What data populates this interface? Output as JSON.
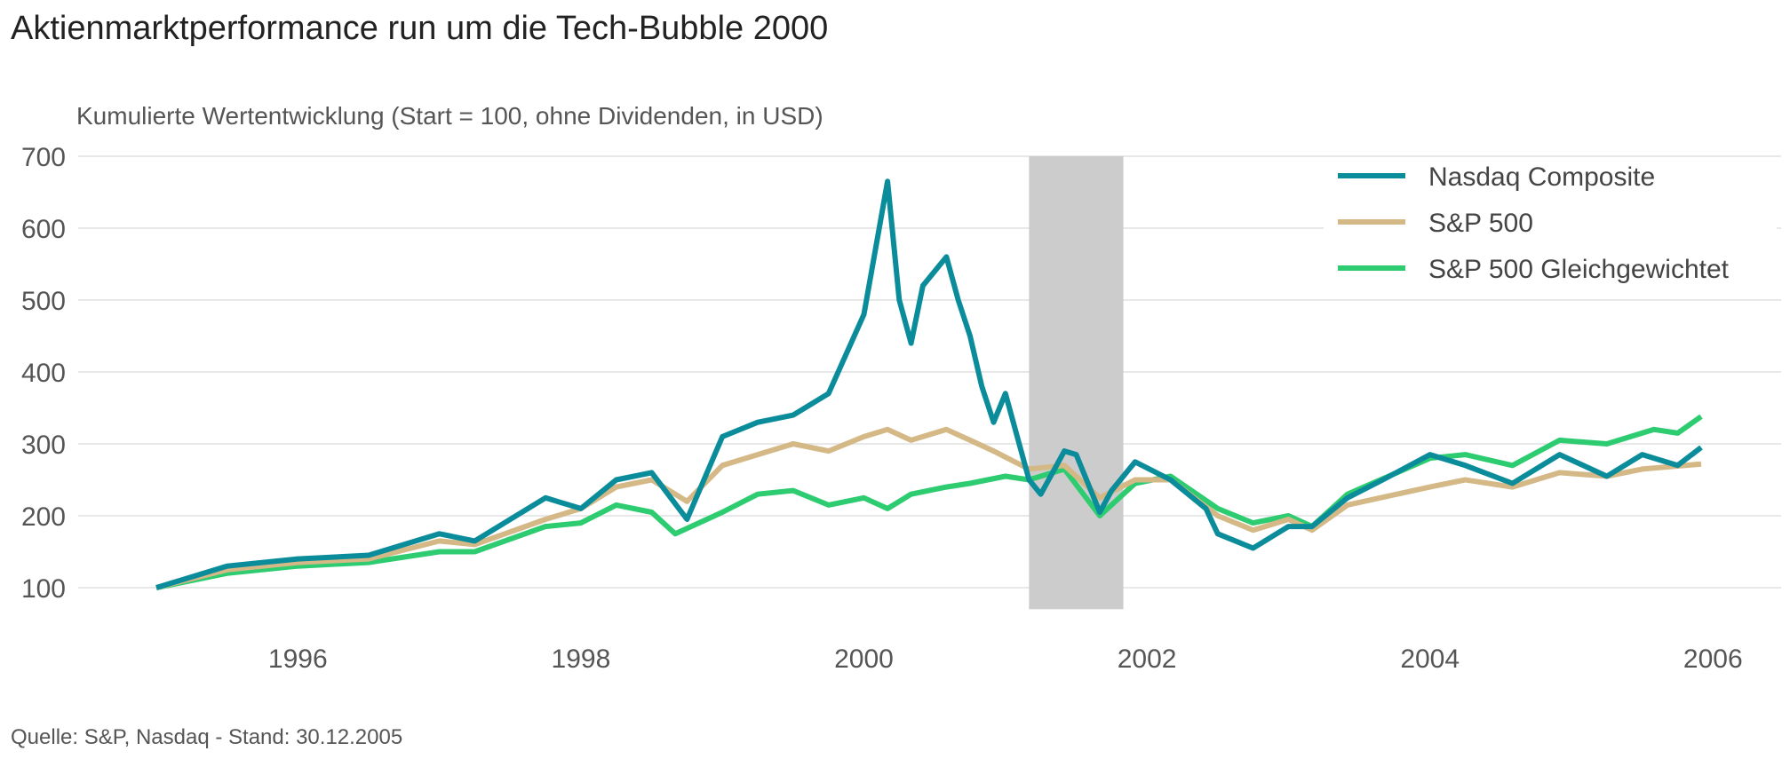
{
  "chart_data": {
    "type": "line",
    "title": "Aktienmarktperformance run um die Tech-Bubble 2000",
    "subtitle": "Kumulierte Wertentwicklung (Start = 100, ohne Dividenden, in USD)",
    "caption": "Quelle: S&P, Nasdaq - Stand: 30.12.2005",
    "xlabel": "",
    "ylabel": "",
    "xlim": [
      "1995-01",
      "2006-04"
    ],
    "ylim": [
      70,
      700
    ],
    "grid": true,
    "legend_position": "top-right",
    "x_ticks": [
      "1996",
      "1998",
      "2000",
      "2002",
      "2004",
      "2006"
    ],
    "y_ticks": [
      100,
      200,
      300,
      400,
      500,
      600,
      700
    ],
    "shaded_region": {
      "start": "2001-03",
      "end": "2001-11",
      "color": "#cccccc"
    },
    "series": [
      {
        "name": "Nasdaq Composite",
        "color": "#0b8c9a",
        "points": [
          [
            "1995-01",
            100
          ],
          [
            "1995-07",
            130
          ],
          [
            "1996-01",
            140
          ],
          [
            "1996-07",
            145
          ],
          [
            "1997-01",
            175
          ],
          [
            "1997-04",
            165
          ],
          [
            "1997-10",
            225
          ],
          [
            "1998-01",
            210
          ],
          [
            "1998-04",
            250
          ],
          [
            "1998-07",
            260
          ],
          [
            "1998-10",
            195
          ],
          [
            "1999-01",
            310
          ],
          [
            "1999-04",
            330
          ],
          [
            "1999-07",
            340
          ],
          [
            "1999-10",
            370
          ],
          [
            "2000-01",
            480
          ],
          [
            "2000-03",
            665
          ],
          [
            "2000-04",
            500
          ],
          [
            "2000-05",
            440
          ],
          [
            "2000-06",
            520
          ],
          [
            "2000-08",
            560
          ],
          [
            "2000-09",
            500
          ],
          [
            "2000-10",
            450
          ],
          [
            "2000-11",
            380
          ],
          [
            "2000-12",
            330
          ],
          [
            "2001-01",
            370
          ],
          [
            "2001-03",
            250
          ],
          [
            "2001-04",
            230
          ],
          [
            "2001-06",
            290
          ],
          [
            "2001-07",
            285
          ],
          [
            "2001-09",
            205
          ],
          [
            "2001-10",
            235
          ],
          [
            "2001-12",
            275
          ],
          [
            "2002-03",
            250
          ],
          [
            "2002-06",
            210
          ],
          [
            "2002-07",
            175
          ],
          [
            "2002-10",
            155
          ],
          [
            "2003-01",
            185
          ],
          [
            "2003-03",
            185
          ],
          [
            "2003-06",
            225
          ],
          [
            "2003-09",
            250
          ],
          [
            "2004-01",
            285
          ],
          [
            "2004-04",
            270
          ],
          [
            "2004-08",
            245
          ],
          [
            "2004-12",
            285
          ],
          [
            "2005-04",
            255
          ],
          [
            "2005-07",
            285
          ],
          [
            "2005-10",
            270
          ],
          [
            "2005-12",
            295
          ]
        ]
      },
      {
        "name": "S&P 500",
        "color": "#d4b886",
        "points": [
          [
            "1995-01",
            100
          ],
          [
            "1995-07",
            125
          ],
          [
            "1996-01",
            135
          ],
          [
            "1996-07",
            140
          ],
          [
            "1997-01",
            165
          ],
          [
            "1997-04",
            160
          ],
          [
            "1997-10",
            195
          ],
          [
            "1998-01",
            210
          ],
          [
            "1998-04",
            240
          ],
          [
            "1998-07",
            250
          ],
          [
            "1998-10",
            220
          ],
          [
            "1999-01",
            270
          ],
          [
            "1999-04",
            285
          ],
          [
            "1999-07",
            300
          ],
          [
            "1999-10",
            290
          ],
          [
            "2000-01",
            310
          ],
          [
            "2000-03",
            320
          ],
          [
            "2000-05",
            305
          ],
          [
            "2000-08",
            320
          ],
          [
            "2000-10",
            305
          ],
          [
            "2000-12",
            290
          ],
          [
            "2001-03",
            265
          ],
          [
            "2001-06",
            270
          ],
          [
            "2001-09",
            225
          ],
          [
            "2001-12",
            250
          ],
          [
            "2002-03",
            250
          ],
          [
            "2002-07",
            200
          ],
          [
            "2002-10",
            180
          ],
          [
            "2003-01",
            195
          ],
          [
            "2003-03",
            180
          ],
          [
            "2003-06",
            215
          ],
          [
            "2004-01",
            240
          ],
          [
            "2004-04",
            250
          ],
          [
            "2004-08",
            240
          ],
          [
            "2004-12",
            260
          ],
          [
            "2005-04",
            255
          ],
          [
            "2005-07",
            265
          ],
          [
            "2005-12",
            272
          ]
        ]
      },
      {
        "name": "S&P 500 Gleichgewichtet",
        "color": "#2ecc71",
        "points": [
          [
            "1995-01",
            100
          ],
          [
            "1995-07",
            120
          ],
          [
            "1996-01",
            130
          ],
          [
            "1996-07",
            135
          ],
          [
            "1997-01",
            150
          ],
          [
            "1997-04",
            150
          ],
          [
            "1997-10",
            185
          ],
          [
            "1998-01",
            190
          ],
          [
            "1998-04",
            215
          ],
          [
            "1998-07",
            205
          ],
          [
            "1998-09",
            175
          ],
          [
            "1999-01",
            205
          ],
          [
            "1999-04",
            230
          ],
          [
            "1999-07",
            235
          ],
          [
            "1999-10",
            215
          ],
          [
            "2000-01",
            225
          ],
          [
            "2000-03",
            210
          ],
          [
            "2000-05",
            230
          ],
          [
            "2000-08",
            240
          ],
          [
            "2000-10",
            245
          ],
          [
            "2001-01",
            255
          ],
          [
            "2001-03",
            250
          ],
          [
            "2001-06",
            265
          ],
          [
            "2001-09",
            200
          ],
          [
            "2001-12",
            245
          ],
          [
            "2002-03",
            255
          ],
          [
            "2002-07",
            210
          ],
          [
            "2002-10",
            190
          ],
          [
            "2003-01",
            200
          ],
          [
            "2003-03",
            185
          ],
          [
            "2003-06",
            230
          ],
          [
            "2004-01",
            280
          ],
          [
            "2004-04",
            285
          ],
          [
            "2004-08",
            270
          ],
          [
            "2004-12",
            305
          ],
          [
            "2005-04",
            300
          ],
          [
            "2005-08",
            320
          ],
          [
            "2005-10",
            315
          ],
          [
            "2005-12",
            338
          ]
        ]
      }
    ]
  }
}
